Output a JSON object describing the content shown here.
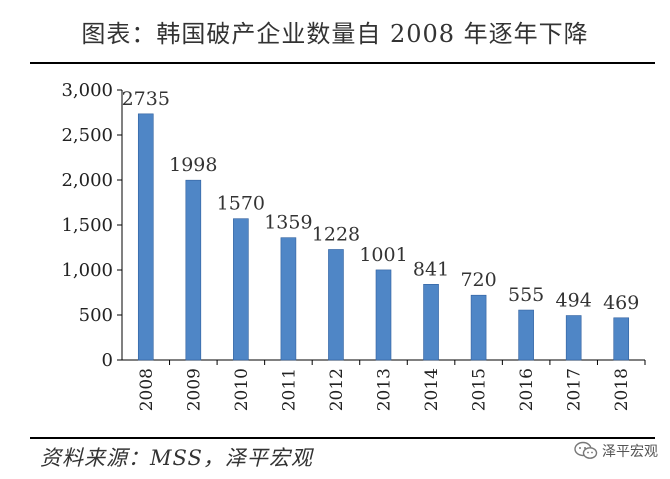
{
  "title": "图表：韩国破产企业数量自 2008 年逐年下降",
  "source": "资料来源：MSS，泽平宏观",
  "watermark": {
    "text": "泽平宏观",
    "icon": "wechat-icon"
  },
  "colors": {
    "bar": "#4f86c6",
    "bar_edge": "#2f5f9e",
    "axis": "#000000",
    "text": "#333333"
  },
  "chart_data": {
    "type": "bar",
    "title": "图表：韩国破产企业数量自 2008 年逐年下降",
    "xlabel": "",
    "ylabel": "",
    "categories": [
      "2008",
      "2009",
      "2010",
      "2011",
      "2012",
      "2013",
      "2014",
      "2015",
      "2016",
      "2017",
      "2018"
    ],
    "values": [
      2735,
      1998,
      1570,
      1359,
      1228,
      1001,
      841,
      720,
      555,
      494,
      469
    ],
    "data_labels": [
      "2735",
      "1998",
      "1570",
      "1359",
      "1228",
      "1001",
      "841",
      "720",
      "555",
      "494",
      "469"
    ],
    "ylim": [
      0,
      3000
    ],
    "yticks": [
      0,
      500,
      1000,
      1500,
      2000,
      2500,
      3000
    ],
    "ytick_labels": [
      "0",
      "500",
      "1,000",
      "1,500",
      "2,000",
      "2,500",
      "3,000"
    ],
    "grid": false,
    "legend": "none"
  }
}
